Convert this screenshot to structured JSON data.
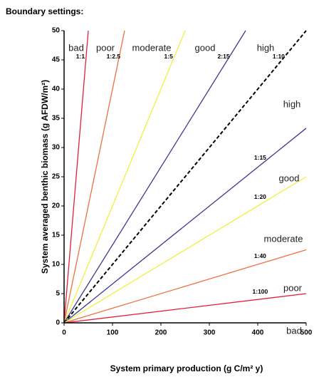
{
  "chart_data": {
    "type": "line",
    "title": "Boundary settings:",
    "x_label": "System primary production (g C/m² y)",
    "y_label": "System averaged benthic biomass (g AFDW/m²)",
    "xlim": [
      0,
      500
    ],
    "ylim": [
      0,
      50
    ],
    "xticks": [
      0,
      100,
      200,
      300,
      400,
      500
    ],
    "yticks": [
      0,
      5,
      10,
      15,
      20,
      25,
      30,
      35,
      40,
      45,
      50
    ],
    "grid": false,
    "series": [
      {
        "name": "1:1",
        "color": "#e0203a",
        "x": [
          0,
          50
        ],
        "values": [
          0,
          50
        ]
      },
      {
        "name": "1:2.5",
        "color": "#f07040",
        "x": [
          0,
          125
        ],
        "values": [
          0,
          50
        ]
      },
      {
        "name": "1:5",
        "color": "#f0f040",
        "x": [
          0,
          250
        ],
        "values": [
          0,
          50
        ]
      },
      {
        "name": "2:15",
        "color": "#3a3a90",
        "x": [
          0,
          375
        ],
        "values": [
          0,
          50
        ]
      },
      {
        "name": "1:10",
        "color": "#000000",
        "dashed": true,
        "x": [
          0,
          500
        ],
        "values": [
          0,
          50
        ]
      },
      {
        "name": "1:15",
        "color": "#3a3a90",
        "x": [
          0,
          500
        ],
        "values": [
          0,
          33.3
        ]
      },
      {
        "name": "1:20",
        "color": "#f0f040",
        "x": [
          0,
          500
        ],
        "values": [
          0,
          25
        ]
      },
      {
        "name": "1:40",
        "color": "#f07040",
        "x": [
          0,
          500
        ],
        "values": [
          0,
          12.5
        ]
      },
      {
        "name": "1:100",
        "color": "#e0203a",
        "x": [
          0,
          500
        ],
        "values": [
          0,
          5
        ]
      }
    ],
    "top_zone_labels": [
      "bad",
      "poor",
      "moderate",
      "good",
      "high"
    ],
    "right_zone_labels": [
      "high",
      "good",
      "moderate",
      "poor",
      "bad"
    ]
  }
}
